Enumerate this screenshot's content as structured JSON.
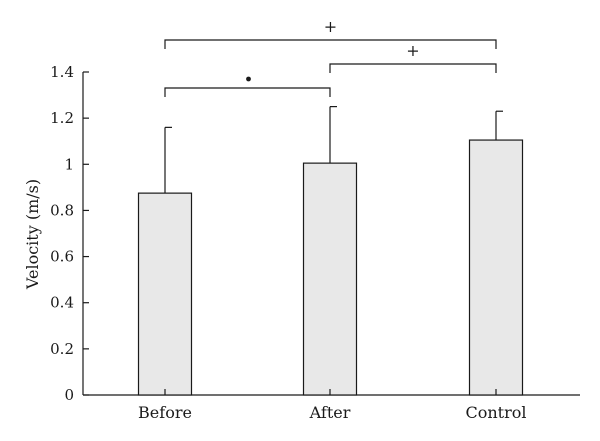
{
  "chart_data": {
    "type": "bar",
    "title": "",
    "xlabel": "",
    "ylabel": "Velocity (m/s)",
    "ylim": [
      0,
      1.4
    ],
    "yticks": [
      0,
      0.2,
      0.4,
      0.6,
      0.8,
      1,
      1.2,
      1.4
    ],
    "ytick_labels": [
      "0",
      "0.2",
      "0.4",
      "0.6",
      "0.8",
      "1",
      "1.2",
      "1.4"
    ],
    "categories": [
      "Before",
      "After",
      "Control"
    ],
    "values": [
      0.875,
      1.005,
      1.105
    ],
    "error_upper": [
      1.16,
      1.25,
      1.23
    ],
    "bar_color": "#e8e8e8",
    "edge_color": "#1a1a1a",
    "grid": false,
    "significance": [
      {
        "from": 0,
        "to": 1,
        "marker": "•"
      },
      {
        "from": 1,
        "to": 2,
        "marker": "+"
      },
      {
        "from": 0,
        "to": 2,
        "marker": "+"
      }
    ]
  }
}
